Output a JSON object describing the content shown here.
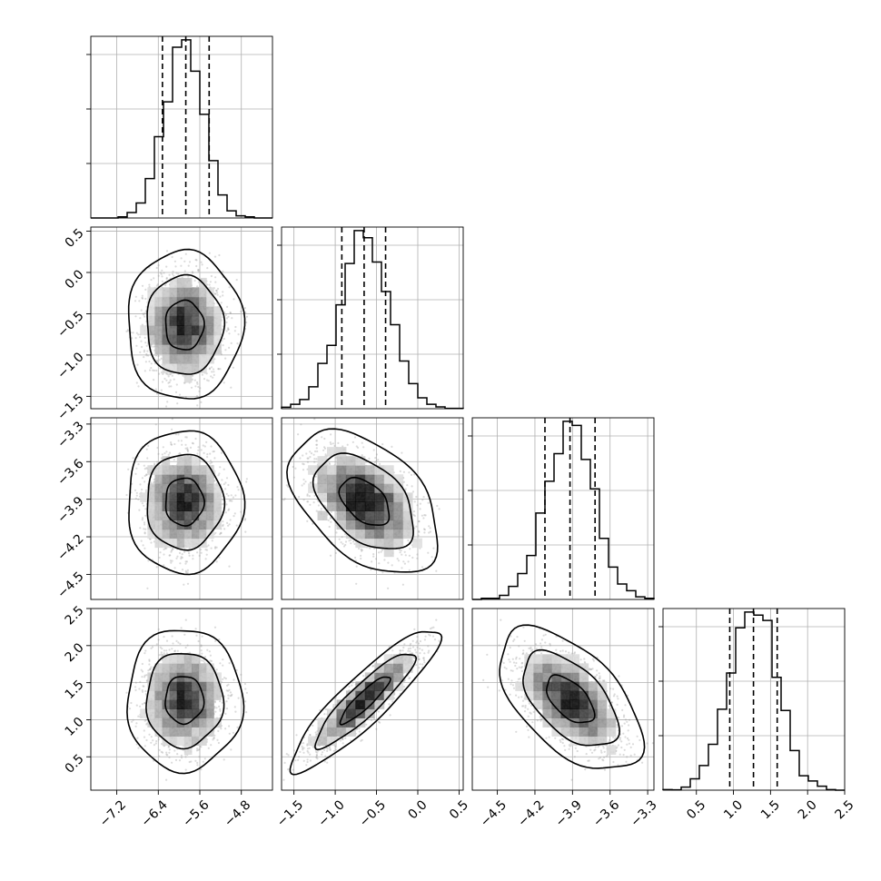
{
  "chart_data": {
    "type": "corner",
    "title": "",
    "grid": true,
    "histogram_bins": 20,
    "quantile_lines": "dashed",
    "parameters": [
      {
        "label": "",
        "range": [
          -7.7,
          -4.2
        ],
        "ticks": [
          -7.2,
          -6.4,
          -5.6,
          -4.8
        ],
        "tick_labels": [
          "−7.2",
          "−6.4",
          "−5.6",
          "−4.8"
        ],
        "mean": -5.9,
        "sd": 0.37,
        "quantiles": [
          -6.32,
          -5.87,
          -5.42
        ]
      },
      {
        "label": "",
        "range": [
          -1.65,
          0.55
        ],
        "ticks": [
          -1.5,
          -1.0,
          -0.5,
          0.0,
          0.5
        ],
        "tick_labels": [
          "−1.5",
          "−1.0",
          "−0.5",
          "0.0",
          "0.5"
        ],
        "mean": -0.64,
        "sd": 0.3,
        "quantiles": [
          -0.92,
          -0.65,
          -0.39
        ]
      },
      {
        "label": "",
        "range": [
          -4.7,
          -3.25
        ],
        "ticks": [
          -4.5,
          -4.2,
          -3.9,
          -3.6,
          -3.3
        ],
        "tick_labels": [
          "−4.5",
          "−4.2",
          "−3.9",
          "−3.6",
          "−3.3"
        ],
        "mean": -3.92,
        "sd": 0.19,
        "quantiles": [
          -4.12,
          -3.92,
          -3.72
        ]
      },
      {
        "label": "",
        "range": [
          0.05,
          2.5
        ],
        "ticks": [
          0.5,
          1.0,
          1.5,
          2.0,
          2.5
        ],
        "tick_labels": [
          "0.5",
          "1.0",
          "1.5",
          "2.0",
          "2.5"
        ],
        "mean": 1.27,
        "sd": 0.32,
        "quantiles": [
          0.95,
          1.27,
          1.59
        ]
      }
    ],
    "correlations": [
      [
        1.0,
        0.0,
        0.0,
        0.0
      ],
      [
        0.0,
        1.0,
        -0.45,
        0.9
      ],
      [
        0.0,
        -0.45,
        1.0,
        -0.55
      ],
      [
        0.0,
        0.9,
        -0.55,
        1.0
      ]
    ],
    "contour_levels": [
      0.393,
      0.865,
      0.989
    ],
    "colors": {
      "line": "#000000",
      "grid": "#b0b0b0",
      "points": "#999999"
    }
  }
}
